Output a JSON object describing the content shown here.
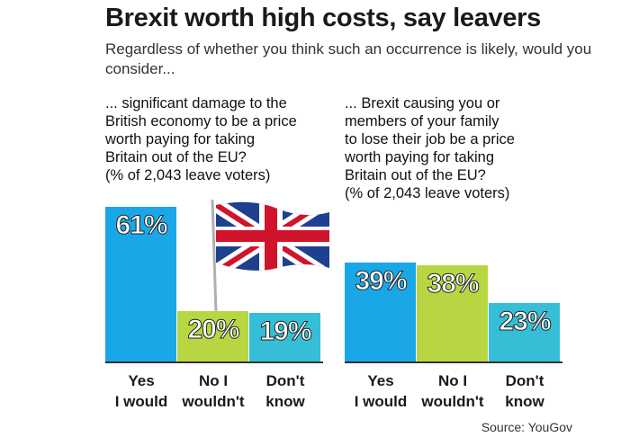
{
  "title": "Brexit worth high costs, say leavers",
  "subtitle": "Regardless of whether you think such an occurrence is likely, would you consider...",
  "source": "Source: YouGov",
  "colors": {
    "yes": "#1aa7e8",
    "no": "#b7d641",
    "dont_know": "#35bed6",
    "axis": "#333333"
  },
  "chart_data": [
    {
      "type": "bar",
      "title": "... significant damage to the\nBritish economy to be a price\nworth paying for taking\nBritain out of the EU?\n(% of 2,043 leave voters)",
      "categories": [
        "Yes\nI would",
        "No I\nwouldn't",
        "Don't\nknow"
      ],
      "values": [
        61,
        20,
        19
      ],
      "value_labels": [
        "61%",
        "20%",
        "19%"
      ],
      "ylim": [
        0,
        61
      ]
    },
    {
      "type": "bar",
      "title": "... Brexit causing you or\nmembers of your family\nto lose their job be a price\nworth paying for taking\nBritain out of the EU?\n(% of 2,043 leave voters)",
      "categories": [
        "Yes\nI would",
        "No I\nwouldn't",
        "Don't\nknow"
      ],
      "values": [
        39,
        38,
        23
      ],
      "value_labels": [
        "39%",
        "38%",
        "23%"
      ],
      "ylim": [
        0,
        61
      ]
    }
  ],
  "image": {
    "flag": "union-jack-flag"
  }
}
